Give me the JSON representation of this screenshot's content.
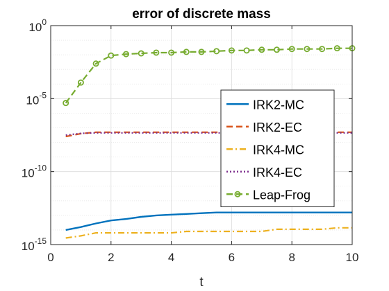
{
  "chart_data": {
    "type": "line",
    "title": "error of discrete mass",
    "xlabel": "t",
    "ylabel": "",
    "xlim": [
      0,
      10
    ],
    "xticks": [
      0,
      2,
      4,
      6,
      8,
      10
    ],
    "yscale": "log",
    "ylim_exponent": [
      -15,
      0
    ],
    "yticks": [
      {
        "base": "10",
        "exp": "-15"
      },
      {
        "base": "10",
        "exp": "-10"
      },
      {
        "base": "10",
        "exp": "-5"
      },
      {
        "base": "10",
        "exp": "0"
      }
    ],
    "grid": true,
    "legend_position": "right",
    "x": [
      0.5,
      1,
      1.5,
      2,
      2.5,
      3,
      3.5,
      4,
      4.5,
      5,
      5.5,
      6,
      6.5,
      7,
      7.5,
      8,
      8.5,
      9,
      9.5,
      10
    ],
    "series": [
      {
        "name": "IRK2-MC",
        "color": "#0072BD",
        "dash": "solid",
        "marker": "none",
        "log10_values": [
          -14.0,
          -13.8,
          -13.55,
          -13.35,
          -13.25,
          -13.1,
          -13.0,
          -12.95,
          -12.9,
          -12.85,
          -12.8,
          -12.8,
          -12.8,
          -12.8,
          -12.8,
          -12.8,
          -12.8,
          -12.8,
          -12.8,
          -12.8
        ]
      },
      {
        "name": "IRK2-EC",
        "color": "#D95319",
        "dash": "dash",
        "marker": "none",
        "log10_values": [
          -7.6,
          -7.4,
          -7.3,
          -7.3,
          -7.3,
          -7.3,
          -7.3,
          -7.3,
          -7.3,
          -7.3,
          -7.3,
          -7.3,
          -7.3,
          -7.3,
          -7.3,
          -7.3,
          -7.3,
          -7.3,
          -7.3,
          -7.3
        ]
      },
      {
        "name": "IRK4-MC",
        "color": "#EDB120",
        "dash": "dashdot",
        "marker": "none",
        "log10_values": [
          -14.55,
          -14.4,
          -14.2,
          -14.2,
          -14.2,
          -14.2,
          -14.2,
          -14.2,
          -14.1,
          -14.1,
          -14.1,
          -14.1,
          -14.1,
          -14.1,
          -13.95,
          -13.95,
          -13.95,
          -13.95,
          -13.85,
          -13.85
        ]
      },
      {
        "name": "IRK4-EC",
        "color": "#7E2F8E",
        "dash": "dot",
        "marker": "none",
        "log10_values": [
          -7.5,
          -7.38,
          -7.35,
          -7.35,
          -7.35,
          -7.35,
          -7.35,
          -7.35,
          -7.35,
          -7.35,
          -7.35,
          -7.35,
          -7.35,
          -7.35,
          -7.35,
          -7.35,
          -7.35,
          -7.35,
          -7.35,
          -7.35
        ]
      },
      {
        "name": "Leap-Frog",
        "color": "#77AC30",
        "dash": "dash",
        "marker": "circle",
        "log10_values": [
          -5.3,
          -3.9,
          -2.6,
          -2.05,
          -1.95,
          -1.9,
          -1.85,
          -1.85,
          -1.8,
          -1.8,
          -1.75,
          -1.7,
          -1.7,
          -1.65,
          -1.65,
          -1.6,
          -1.6,
          -1.6,
          -1.55,
          -1.55
        ]
      }
    ]
  }
}
